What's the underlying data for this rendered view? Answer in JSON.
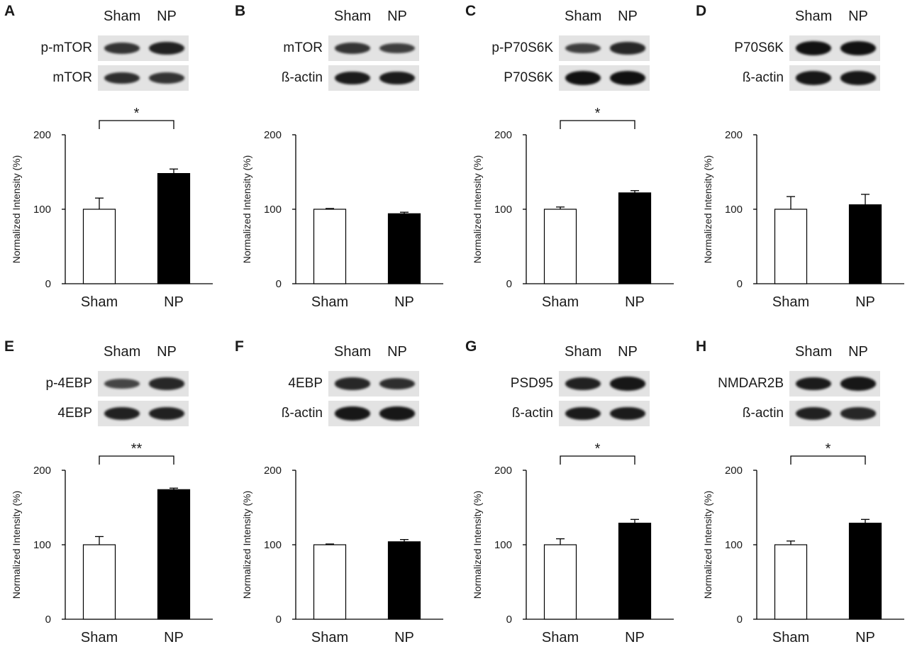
{
  "chart_data": [
    {
      "type": "bar",
      "panel": "A",
      "lanes": [
        "Sham",
        "NP"
      ],
      "blots": [
        {
          "label": "p-mTOR",
          "intensity": [
            0.7,
            0.85
          ]
        },
        {
          "label": "mTOR",
          "intensity": [
            0.75,
            0.7
          ]
        }
      ],
      "categories": [
        "Sham",
        "NP"
      ],
      "values": [
        100,
        148
      ],
      "errors": [
        15,
        6
      ],
      "ylabel": "Normalized Intensity (%)",
      "yticks": [
        0,
        100,
        200
      ],
      "ylim": [
        0,
        200
      ],
      "significance": "*",
      "colors": [
        "#ffffff",
        "#000000"
      ]
    },
    {
      "type": "bar",
      "panel": "B",
      "lanes": [
        "Sham",
        "NP"
      ],
      "blots": [
        {
          "label": "mTOR",
          "intensity": [
            0.7,
            0.6
          ]
        },
        {
          "label": "ß-actin",
          "intensity": [
            0.9,
            0.9
          ]
        }
      ],
      "categories": [
        "Sham",
        "NP"
      ],
      "values": [
        100,
        94
      ],
      "errors": [
        1,
        2
      ],
      "ylabel": "Normalized Intensity (%)",
      "yticks": [
        0,
        100,
        200
      ],
      "ylim": [
        0,
        200
      ],
      "significance": "",
      "colors": [
        "#ffffff",
        "#000000"
      ]
    },
    {
      "type": "bar",
      "panel": "C",
      "lanes": [
        "Sham",
        "NP"
      ],
      "blots": [
        {
          "label": "p-P70S6K",
          "intensity": [
            0.6,
            0.8
          ]
        },
        {
          "label": "P70S6K",
          "intensity": [
            1.0,
            1.0
          ]
        }
      ],
      "categories": [
        "Sham",
        "NP"
      ],
      "values": [
        100,
        122
      ],
      "errors": [
        3,
        3
      ],
      "ylabel": "Normalized Intensity (%)",
      "yticks": [
        0,
        100,
        200
      ],
      "ylim": [
        0,
        200
      ],
      "significance": "*",
      "colors": [
        "#ffffff",
        "#000000"
      ]
    },
    {
      "type": "bar",
      "panel": "D",
      "lanes": [
        "Sham",
        "NP"
      ],
      "blots": [
        {
          "label": "P70S6K",
          "intensity": [
            1.0,
            1.0
          ]
        },
        {
          "label": "ß-actin",
          "intensity": [
            0.95,
            0.95
          ]
        }
      ],
      "categories": [
        "Sham",
        "NP"
      ],
      "values": [
        100,
        106
      ],
      "errors": [
        17,
        14
      ],
      "ylabel": "Normalized Intensity (%)",
      "yticks": [
        0,
        100,
        200
      ],
      "ylim": [
        0,
        200
      ],
      "significance": "",
      "colors": [
        "#ffffff",
        "#000000"
      ]
    },
    {
      "type": "bar",
      "panel": "E",
      "lanes": [
        "Sham",
        "NP"
      ],
      "blots": [
        {
          "label": "p-4EBP",
          "intensity": [
            0.55,
            0.8
          ]
        },
        {
          "label": "4EBP",
          "intensity": [
            0.85,
            0.85
          ]
        }
      ],
      "categories": [
        "Sham",
        "NP"
      ],
      "values": [
        100,
        174
      ],
      "errors": [
        11,
        2
      ],
      "ylabel": "Normalized Intensity (%)",
      "yticks": [
        0,
        100,
        200
      ],
      "ylim": [
        0,
        200
      ],
      "significance": "**",
      "colors": [
        "#ffffff",
        "#000000"
      ]
    },
    {
      "type": "bar",
      "panel": "F",
      "lanes": [
        "Sham",
        "NP"
      ],
      "blots": [
        {
          "label": "4EBP",
          "intensity": [
            0.8,
            0.75
          ]
        },
        {
          "label": "ß-actin",
          "intensity": [
            0.95,
            0.95
          ]
        }
      ],
      "categories": [
        "Sham",
        "NP"
      ],
      "values": [
        100,
        104
      ],
      "errors": [
        1,
        3
      ],
      "ylabel": "Normalized Intensity (%)",
      "yticks": [
        0,
        100,
        200
      ],
      "ylim": [
        0,
        200
      ],
      "significance": "",
      "colors": [
        "#ffffff",
        "#000000"
      ]
    },
    {
      "type": "bar",
      "panel": "G",
      "lanes": [
        "Sham",
        "NP"
      ],
      "blots": [
        {
          "label": "PSD95",
          "intensity": [
            0.85,
            0.95
          ]
        },
        {
          "label": "ß-actin",
          "intensity": [
            0.9,
            0.9
          ]
        }
      ],
      "categories": [
        "Sham",
        "NP"
      ],
      "values": [
        100,
        129
      ],
      "errors": [
        8,
        5
      ],
      "ylabel": "Normalized Intensity (%)",
      "yticks": [
        0,
        100,
        200
      ],
      "ylim": [
        0,
        200
      ],
      "significance": "*",
      "colors": [
        "#ffffff",
        "#000000"
      ]
    },
    {
      "type": "bar",
      "panel": "H",
      "lanes": [
        "Sham",
        "NP"
      ],
      "blots": [
        {
          "label": "NMDAR2B",
          "intensity": [
            0.9,
            0.95
          ]
        },
        {
          "label": "ß-actin",
          "intensity": [
            0.85,
            0.8
          ]
        }
      ],
      "categories": [
        "Sham",
        "NP"
      ],
      "values": [
        100,
        129
      ],
      "errors": [
        5,
        5
      ],
      "ylabel": "Normalized Intensity (%)",
      "yticks": [
        0,
        100,
        200
      ],
      "ylim": [
        0,
        200
      ],
      "significance": "*",
      "colors": [
        "#ffffff",
        "#000000"
      ]
    }
  ]
}
